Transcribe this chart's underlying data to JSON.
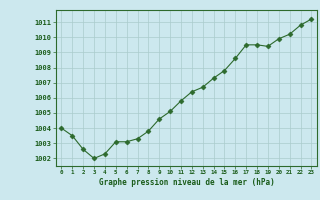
{
  "x": [
    0,
    1,
    2,
    3,
    4,
    5,
    6,
    7,
    8,
    9,
    10,
    11,
    12,
    13,
    14,
    15,
    16,
    17,
    18,
    19,
    20,
    21,
    22,
    23
  ],
  "y": [
    1004.0,
    1003.5,
    1002.6,
    1002.0,
    1002.3,
    1003.1,
    1003.1,
    1003.3,
    1003.8,
    1004.6,
    1005.1,
    1005.8,
    1006.4,
    1006.7,
    1007.3,
    1007.8,
    1008.6,
    1009.5,
    1009.5,
    1009.4,
    1009.9,
    1010.2,
    1010.8,
    1011.2
  ],
  "line_color": "#2d6a2d",
  "marker": "D",
  "marker_size": 2.5,
  "bg_color": "#cce8ee",
  "grid_color": "#aacccc",
  "xlabel": "Graphe pression niveau de la mer (hPa)",
  "xlabel_color": "#1a5c1a",
  "tick_color": "#1a5c1a",
  "ytick_labels": [
    "1002",
    "1003",
    "1004",
    "1005",
    "1006",
    "1007",
    "1008",
    "1009",
    "1010",
    "1011"
  ],
  "yticks": [
    1002,
    1003,
    1004,
    1005,
    1006,
    1007,
    1008,
    1009,
    1010,
    1011
  ],
  "ylim": [
    1001.5,
    1011.8
  ],
  "xlim": [
    -0.5,
    23.5
  ],
  "xtick_labels": [
    "0",
    "1",
    "2",
    "3",
    "4",
    "5",
    "6",
    "7",
    "8",
    "9",
    "10",
    "11",
    "12",
    "13",
    "14",
    "15",
    "16",
    "17",
    "18",
    "19",
    "20",
    "21",
    "22",
    "23"
  ]
}
